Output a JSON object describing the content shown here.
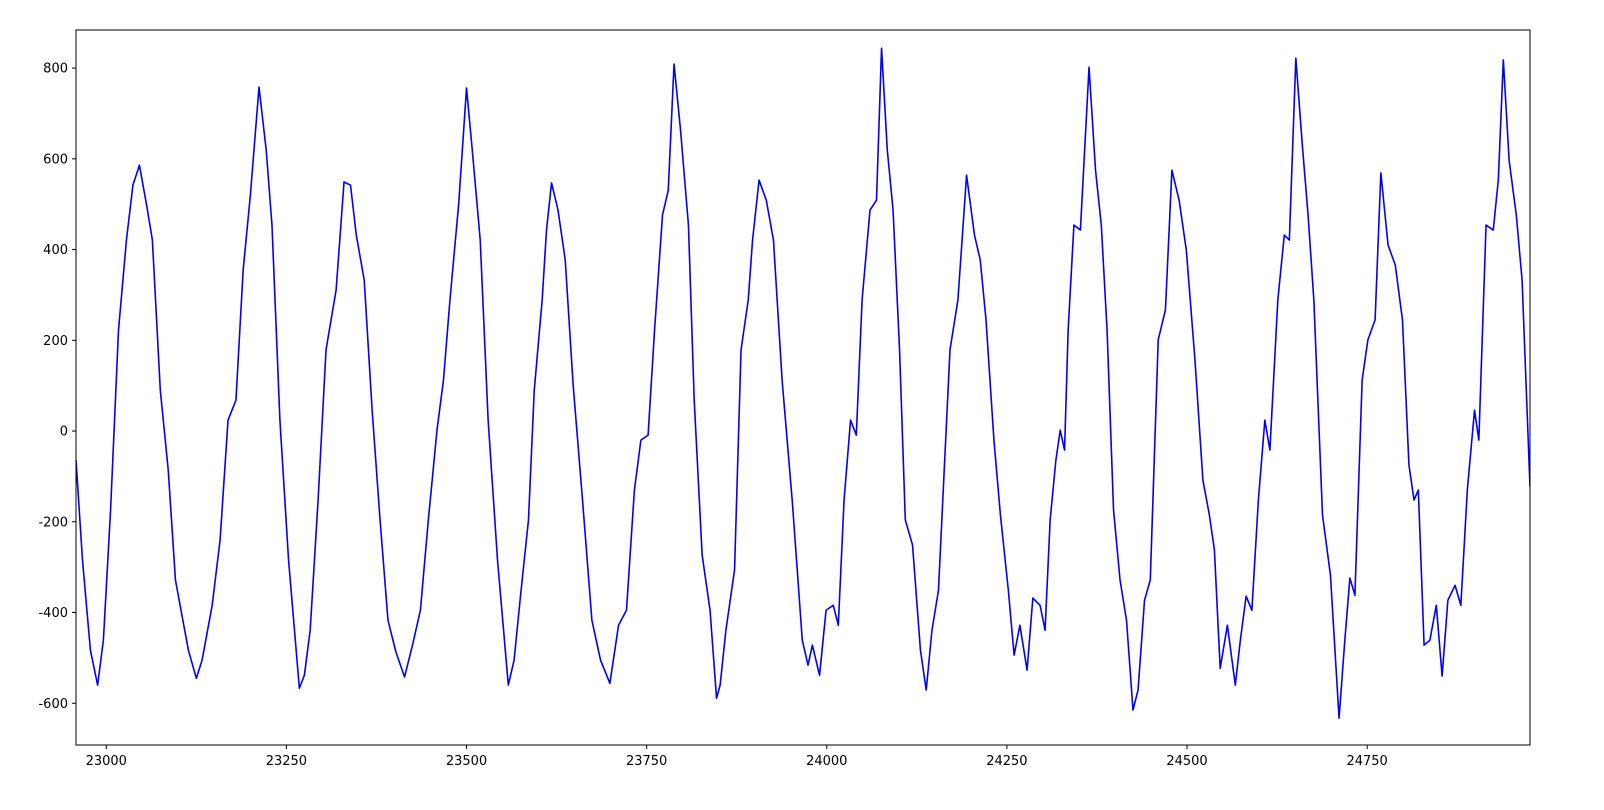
{
  "chart_data": {
    "type": "line",
    "x": [
      22958,
      22967,
      22978,
      22988,
      22996,
      23006,
      23017,
      23028,
      23037,
      23046,
      23056,
      23064,
      23075,
      23086,
      23096,
      23105,
      23114,
      23125,
      23133,
      23147,
      23158,
      23169,
      23180,
      23190,
      23200,
      23212,
      23222,
      23230,
      23241,
      23253,
      23268,
      23275,
      23283,
      23294,
      23305,
      23319,
      23330,
      23339,
      23347,
      23358,
      23369,
      23380,
      23391,
      23402,
      23414,
      23425,
      23436,
      23447,
      23459,
      23468,
      23477,
      23489,
      23500,
      23508,
      23519,
      23530,
      23543,
      23558,
      23566,
      23575,
      23586,
      23594,
      23605,
      23611,
      23618,
      23627,
      23637,
      23648,
      23661,
      23674,
      23686,
      23699,
      23711,
      23722,
      23733,
      23742,
      23752,
      23761,
      23772,
      23780,
      23788,
      23797,
      23808,
      23816,
      23827,
      23838,
      23847,
      23852,
      23860,
      23872,
      23881,
      23891,
      23897,
      23906,
      23916,
      23926,
      23938,
      23952,
      23966,
      23974,
      23980,
      23990,
      23999,
      24009,
      24016,
      24024,
      24033,
      24041,
      24049,
      24060,
      24069,
      24076,
      24084,
      24092,
      24101,
      24109,
      24119,
      24130,
      24138,
      24146,
      24155,
      24163,
      24171,
      24182,
      24194,
      24205,
      24213,
      24221,
      24232,
      24241,
      24252,
      24260,
      24268,
      24278,
      24286,
      24296,
      24303,
      24310,
      24318,
      24324,
      24330,
      24335,
      24343,
      24352,
      24364,
      24373,
      24381,
      24389,
      24398,
      24407,
      24416,
      24425,
      24432,
      24441,
      24449,
      24460,
      24470,
      24479,
      24489,
      24499,
      24511,
      24522,
      24531,
      24538,
      24546,
      24556,
      24567,
      24574,
      24582,
      24590,
      24599,
      24608,
      24615,
      24626,
      24635,
      24642,
      24651,
      24660,
      24668,
      24676,
      24688,
      24699,
      24711,
      24719,
      24726,
      24733,
      24743,
      24751,
      24761,
      24769,
      24779,
      24789,
      24799,
      24808,
      24815,
      24821,
      24829,
      24837,
      24846,
      24854,
      24862,
      24872,
      24880,
      24889,
      24899,
      24905,
      24915,
      24925,
      24932,
      24939,
      24947,
      24957,
      24965,
      24976
    ],
    "series": [
      {
        "color": "#0000ff",
        "values": [
          -64,
          -284,
          -483,
          -560,
          -461,
          -174,
          223,
          421,
          542,
          586,
          498,
          421,
          90,
          -86,
          -328,
          -406,
          -483,
          -545,
          -505,
          -384,
          -240,
          24,
          68,
          355,
          520,
          758,
          619,
          454,
          24,
          -284,
          -567,
          -538,
          -439,
          -152,
          179,
          311,
          549,
          542,
          432,
          333,
          46,
          -196,
          -417,
          -487,
          -542,
          -472,
          -395,
          -196,
          2,
          112,
          289,
          498,
          756,
          619,
          421,
          24,
          -284,
          -560,
          -505,
          -362,
          -196,
          90,
          289,
          443,
          547,
          487,
          377,
          101,
          -152,
          -417,
          -505,
          -556,
          -428,
          -395,
          -130,
          -20,
          -9,
          223,
          476,
          531,
          809,
          664,
          454,
          68,
          -273,
          -395,
          -589,
          -560,
          -439,
          -306,
          179,
          289,
          421,
          553,
          509,
          421,
          112,
          -152,
          -461,
          -516,
          -472,
          -538,
          -395,
          -384,
          -428,
          -152,
          24,
          -9,
          289,
          487,
          509,
          844,
          619,
          487,
          179,
          -196,
          -251,
          -483,
          -571,
          -439,
          -351,
          -86,
          179,
          289,
          564,
          432,
          377,
          245,
          -20,
          -185,
          -351,
          -494,
          -428,
          -527,
          -368,
          -384,
          -439,
          -196,
          -64,
          2,
          -42,
          223,
          454,
          443,
          802,
          575,
          454,
          223,
          -174,
          -328,
          -417,
          -615,
          -571,
          -373,
          -328,
          201,
          267,
          575,
          509,
          399,
          157,
          -108,
          -185,
          -262,
          -523,
          -428,
          -560,
          -461,
          -364,
          -395,
          -152,
          24,
          -42,
          289,
          432,
          421,
          822,
          630,
          476,
          289,
          -185,
          -317,
          -633,
          -461,
          -324,
          -362,
          112,
          201,
          245,
          569,
          410,
          366,
          245,
          -75,
          -152,
          -130,
          -472,
          -461,
          -384,
          -540,
          -373,
          -340,
          -384,
          -130,
          46,
          -20,
          454,
          443,
          553,
          818,
          597,
          476,
          333,
          -123
        ]
      }
    ],
    "xlim": [
      22958,
      24976
    ],
    "ylim": [
      -692,
      884
    ],
    "xticks": [
      23000,
      23250,
      23500,
      23750,
      24000,
      24250,
      24500,
      24750
    ],
    "yticks": [
      -600,
      -400,
      -200,
      0,
      200,
      400,
      600,
      800
    ]
  }
}
